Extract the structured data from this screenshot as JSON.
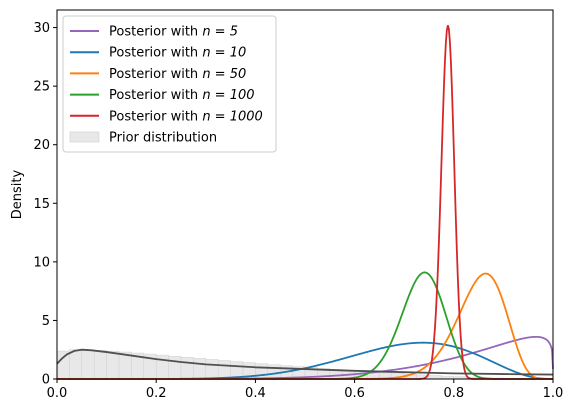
{
  "chart_data": {
    "type": "line",
    "title": "",
    "xlabel": "",
    "ylabel": "Density",
    "xlim": [
      0,
      1
    ],
    "ylim": [
      0,
      31.5
    ],
    "xticks": [
      0,
      0.2,
      0.4,
      0.6,
      0.8,
      1.0
    ],
    "xtick_labels": [
      "0.0",
      "0.2",
      "0.4",
      "0.6",
      "0.8",
      "1.0"
    ],
    "yticks": [
      0,
      5,
      10,
      15,
      20,
      25,
      30
    ],
    "ytick_labels": [
      "0",
      "5",
      "10",
      "15",
      "20",
      "25",
      "30"
    ],
    "grid": false,
    "legend_position": "top-left",
    "series": [
      {
        "name": "Posterior with n = 5",
        "legend_prefix": "Posterior with ",
        "legend_math": "n = 5",
        "color": "#9467bd",
        "alpha": 6.6,
        "beta": 1.2,
        "peak_x": 1.0,
        "peak_y": 3.6
      },
      {
        "name": "Posterior with n = 10",
        "legend_prefix": "Posterior with ",
        "legend_math": "n = 10",
        "color": "#1f77b4",
        "alpha": 8.6,
        "beta": 3.7,
        "peak_x": 0.73,
        "peak_y": 3.1
      },
      {
        "name": "Posterior with n = 50",
        "legend_prefix": "Posterior with ",
        "legend_math": "n = 50",
        "color": "#ff7f0e",
        "alpha": 43.6,
        "beta": 7.7,
        "peak_x": 0.863,
        "peak_y": 9.0
      },
      {
        "name": "Posterior with n = 100",
        "legend_prefix": "Posterior with ",
        "legend_math": "n = 100",
        "color": "#2ca02c",
        "alpha": 74.6,
        "beta": 26.7,
        "peak_x": 0.74,
        "peak_y": 9.1
      },
      {
        "name": "Posterior with n = 1000",
        "legend_prefix": "Posterior with ",
        "legend_math": "n = 1000",
        "color": "#d62728",
        "alpha": 788.6,
        "beta": 212.7,
        "peak_x": 0.788,
        "peak_y": 30.2
      }
    ],
    "prior": {
      "name": "Prior distribution",
      "alpha": 1.08,
      "beta": 2.7,
      "kde_color": "#505050",
      "hist_color": "#e8e8e8",
      "bin_width": 0.025,
      "kde_points": [
        [
          0.0,
          1.3
        ],
        [
          0.01,
          1.75
        ],
        [
          0.02,
          2.1
        ],
        [
          0.035,
          2.4
        ],
        [
          0.05,
          2.5
        ],
        [
          0.07,
          2.45
        ],
        [
          0.1,
          2.3
        ],
        [
          0.15,
          2.0
        ],
        [
          0.2,
          1.7
        ],
        [
          0.25,
          1.45
        ],
        [
          0.3,
          1.25
        ],
        [
          0.4,
          1.0
        ],
        [
          0.5,
          0.85
        ],
        [
          0.6,
          0.7
        ],
        [
          0.7,
          0.58
        ],
        [
          0.8,
          0.48
        ],
        [
          0.9,
          0.42
        ],
        [
          1.0,
          0.38
        ]
      ]
    }
  }
}
